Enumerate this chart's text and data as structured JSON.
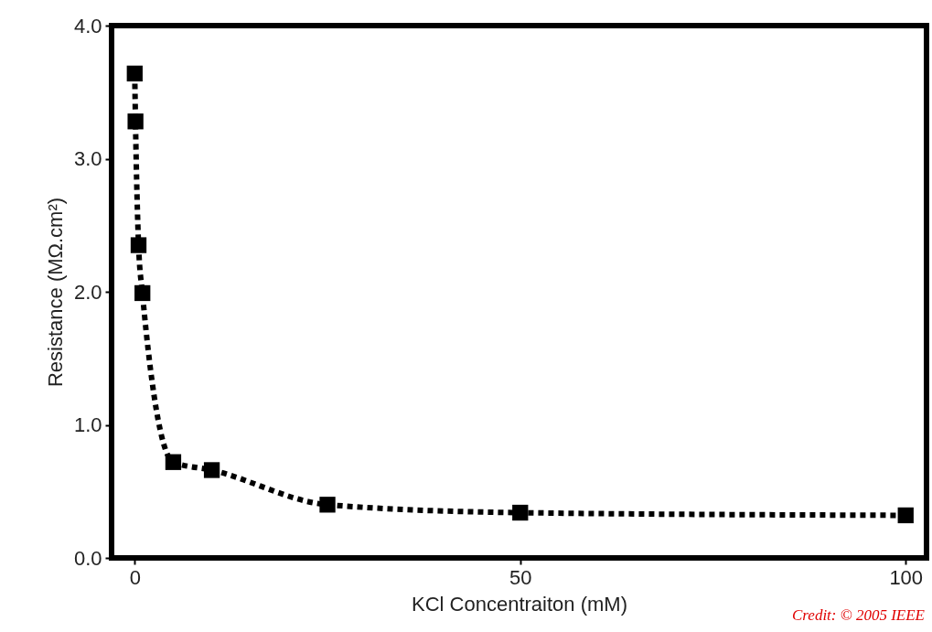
{
  "chart_data": {
    "type": "line",
    "xlabel": "KCl Concentraiton (mM)",
    "ylabel": "Resistance (MΩ.cm²)",
    "x": [
      0,
      0.1,
      0.5,
      1,
      5,
      10,
      25,
      50,
      100
    ],
    "series": [
      {
        "color": "#000000",
        "values": [
          3.64,
          3.28,
          2.35,
          1.99,
          0.72,
          0.66,
          0.4,
          0.34,
          0.32
        ]
      }
    ],
    "xlim": [
      -3,
      102.7
    ],
    "ylim": [
      0,
      4
    ],
    "xticks": [
      0,
      50,
      100
    ],
    "yticks": [
      {
        "value": 0,
        "label": "0.0"
      },
      {
        "value": 1,
        "label": "1.0"
      },
      {
        "value": 2,
        "label": "2.0"
      },
      {
        "value": 3,
        "label": "3.0"
      },
      {
        "value": 4,
        "label": "4.0"
      }
    ],
    "grid": false,
    "marker": "square",
    "line_style": "dotted",
    "annotations": [
      "Credit: © 2005 IEEE"
    ]
  }
}
